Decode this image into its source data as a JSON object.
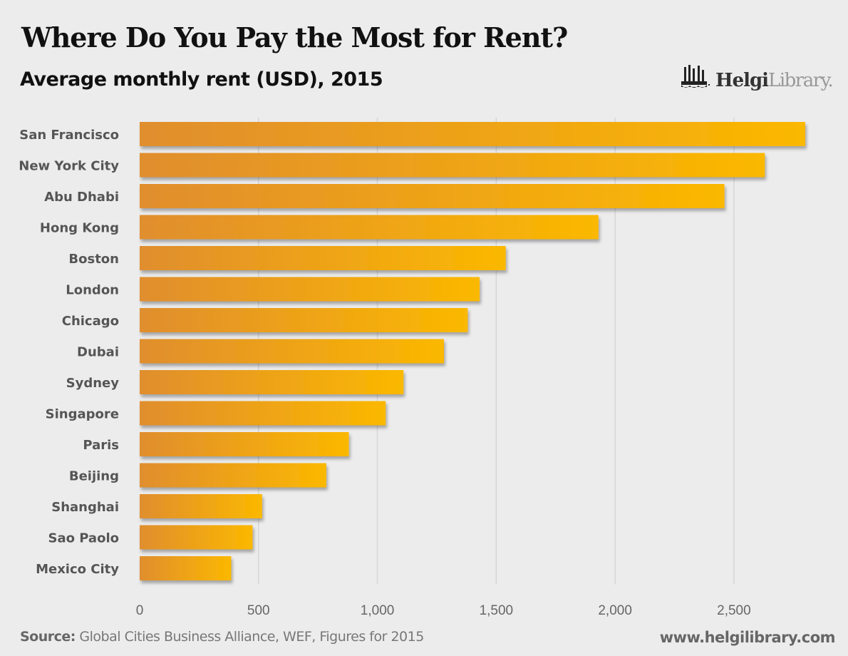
{
  "chart_data": {
    "type": "bar",
    "orientation": "horizontal",
    "title": "Where Do You Pay the Most for Rent?",
    "subtitle": "Average monthly rent (USD), 2015",
    "xlabel": "",
    "ylabel": "",
    "categories": [
      "San Francisco",
      "New York City",
      "Abu Dhabi",
      "Hong Kong",
      "Boston",
      "London",
      "Chicago",
      "Dubai",
      "Sydney",
      "Singapore",
      "Paris",
      "Beijing",
      "Shanghai",
      "Sao Paolo",
      "Mexico City"
    ],
    "values": [
      2800,
      2630,
      2460,
      1930,
      1540,
      1430,
      1380,
      1280,
      1110,
      1035,
      880,
      785,
      515,
      475,
      385
    ],
    "xlim": [
      0,
      2800
    ],
    "xticks": [
      0,
      500,
      1000,
      1500,
      2000,
      2500
    ],
    "xtick_labels": [
      "0",
      "500",
      "1,000",
      "1,500",
      "2,000",
      "2,500"
    ],
    "grid": true,
    "legend": "none",
    "bar_gradient": [
      "#e08e2e",
      "#fbb800"
    ]
  },
  "branding": {
    "logo_bold": "Helgi",
    "logo_light": "Library.",
    "url": "www.helgilibrary.com"
  },
  "footer": {
    "source_label": "Source:",
    "source_text": " Global Cities Business Alliance, WEF, Figures for 2015"
  }
}
